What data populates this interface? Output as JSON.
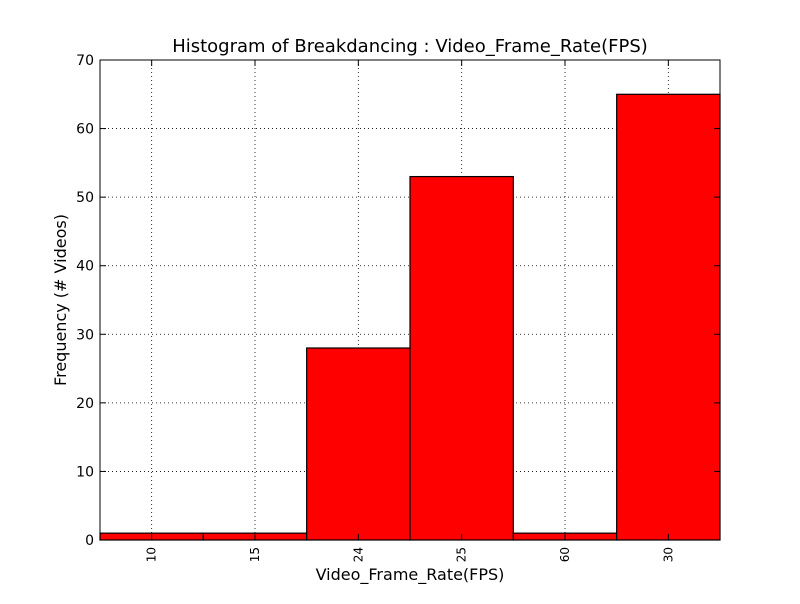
{
  "chart_data": {
    "type": "bar",
    "title": "Histogram of Breakdancing : Video_Frame_Rate(FPS)",
    "xlabel": "Video_Frame_Rate(FPS)",
    "ylabel": "Frequency (# Videos)",
    "categories": [
      "10",
      "15",
      "24",
      "25",
      "60",
      "30"
    ],
    "values": [
      1,
      1,
      28,
      53,
      1,
      65
    ],
    "ylim": [
      0,
      70
    ],
    "yticks": [
      0,
      10,
      20,
      30,
      40,
      50,
      60,
      70
    ],
    "grid": true,
    "bar_color": "#ff0000",
    "edge_color": "#000000"
  }
}
